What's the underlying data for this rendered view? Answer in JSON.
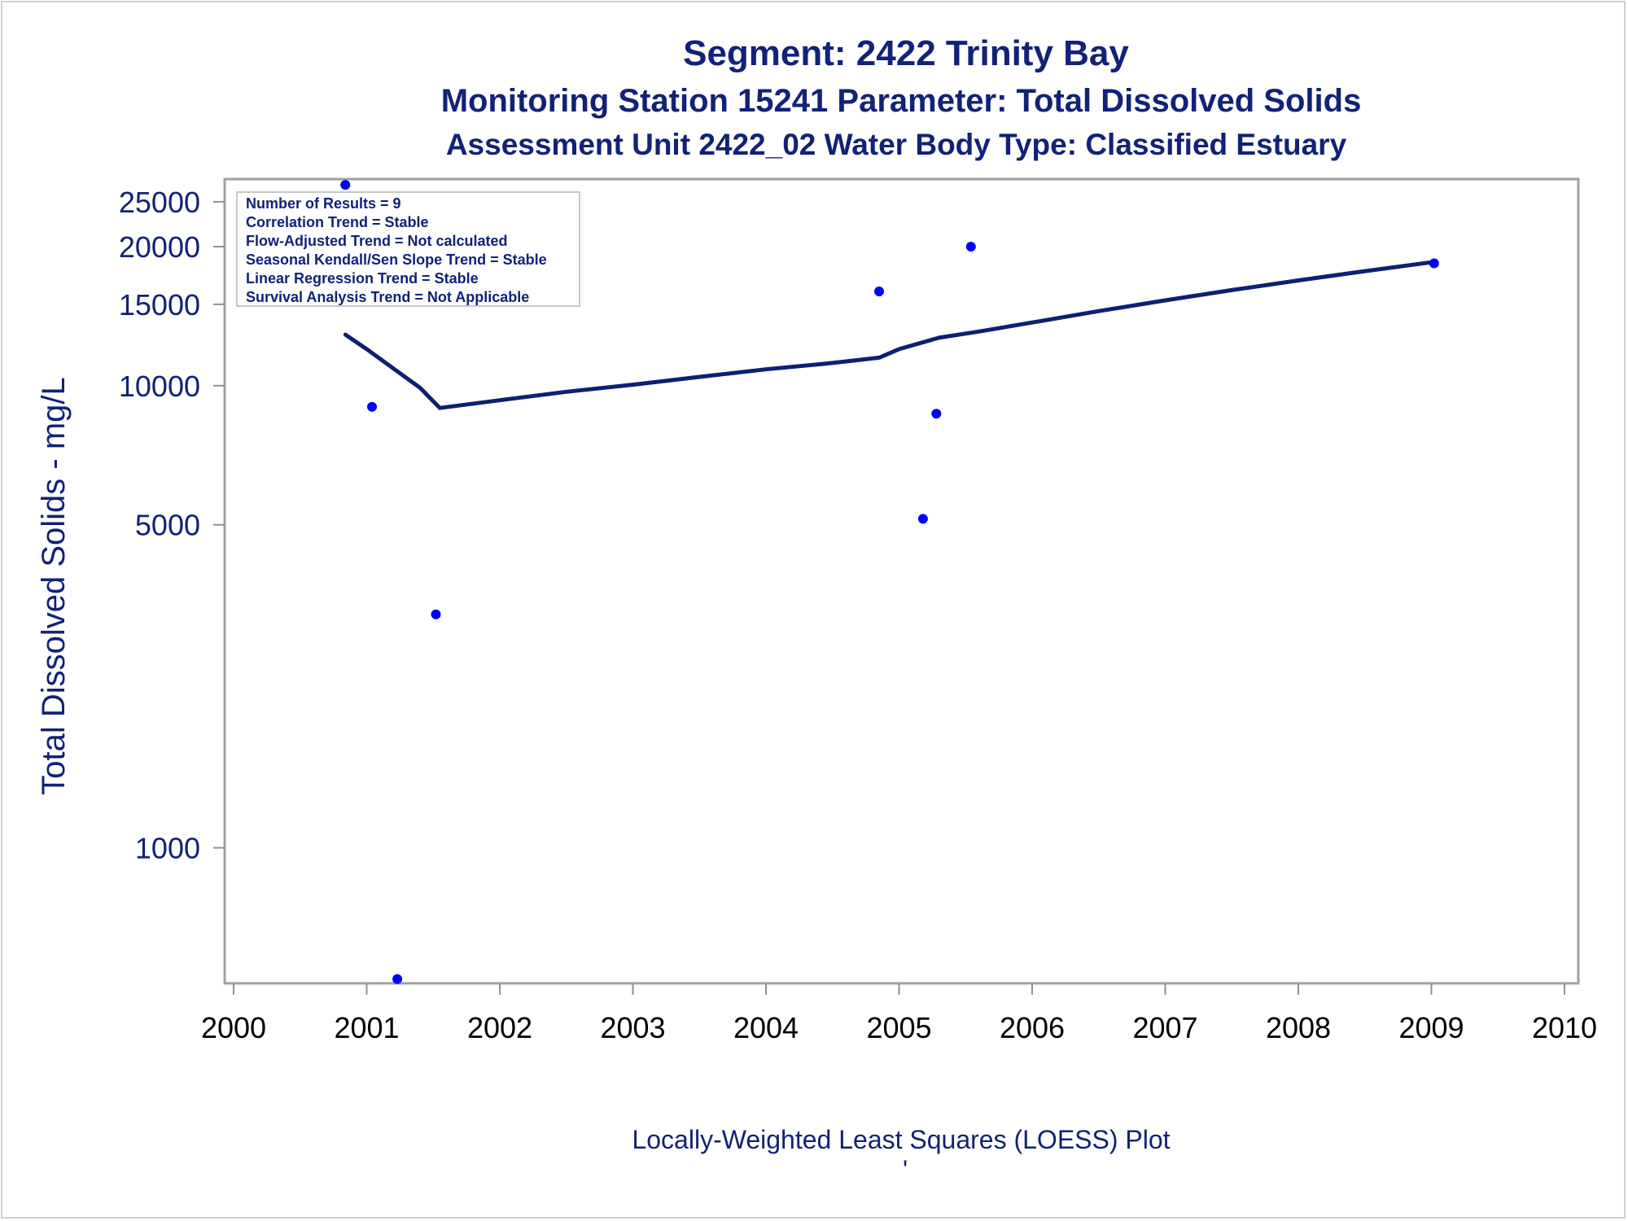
{
  "chart_data": {
    "type": "scatter",
    "title": "Segment: 2422  Trinity Bay",
    "subtitle": "Monitoring Station 15241 Parameter: Total Dissolved Solids",
    "subtitle2": "Assessment Unit 2422_02   Water Body Type: Classified Estuary",
    "xlabel": "",
    "ylabel": "Total Dissolved Solids - mg/L",
    "footnote": "Locally-Weighted Least Squares (LOESS) Plot",
    "footnote_mark": "'",
    "xlim": [
      2000,
      2010
    ],
    "ylim": [
      509,
      28000
    ],
    "yscale": "log",
    "x_ticks": [
      "2000",
      "2001",
      "2002",
      "2003",
      "2004",
      "2005",
      "2006",
      "2007",
      "2008",
      "2009",
      "2010"
    ],
    "y_ticks": [
      1000,
      5000,
      10000,
      15000,
      20000,
      25000
    ],
    "y_tick_labels": [
      "1000",
      "5000",
      "10000",
      "15000",
      "20000",
      "25000"
    ],
    "grid": false,
    "inset_legend": {
      "placement": "top-left",
      "lines": [
        "Number of Results = 9",
        "Correlation Trend = Stable",
        "Flow-Adjusted Trend = Not calculated",
        "Seasonal Kendall/Sen Slope Trend = Stable",
        "Linear Regression Trend = Stable",
        "Survival Analysis Trend = Not Applicable"
      ]
    },
    "series": [
      {
        "kind": "points",
        "color": "#0000ff",
        "points": [
          {
            "x": 2000.84,
            "y": 27200
          },
          {
            "x": 2001.04,
            "y": 9000
          },
          {
            "x": 2001.23,
            "y": 520
          },
          {
            "x": 2001.52,
            "y": 3200
          },
          {
            "x": 2004.85,
            "y": 16000
          },
          {
            "x": 2005.18,
            "y": 5150
          },
          {
            "x": 2005.28,
            "y": 8700
          },
          {
            "x": 2005.54,
            "y": 20000
          },
          {
            "x": 2009.02,
            "y": 18400
          }
        ]
      },
      {
        "kind": "loess",
        "color": "#0d2070",
        "points": [
          {
            "x": 2000.84,
            "y": 12900
          },
          {
            "x": 2001.0,
            "y": 12000
          },
          {
            "x": 2001.2,
            "y": 10900
          },
          {
            "x": 2001.4,
            "y": 9900
          },
          {
            "x": 2001.55,
            "y": 8950
          },
          {
            "x": 2002.0,
            "y": 9300
          },
          {
            "x": 2002.5,
            "y": 9700
          },
          {
            "x": 2003.0,
            "y": 10050
          },
          {
            "x": 2003.5,
            "y": 10450
          },
          {
            "x": 2004.0,
            "y": 10850
          },
          {
            "x": 2004.5,
            "y": 11200
          },
          {
            "x": 2004.85,
            "y": 11500
          },
          {
            "x": 2005.0,
            "y": 12000
          },
          {
            "x": 2005.3,
            "y": 12700
          },
          {
            "x": 2005.6,
            "y": 13100
          },
          {
            "x": 2006.0,
            "y": 13700
          },
          {
            "x": 2006.5,
            "y": 14500
          },
          {
            "x": 2007.0,
            "y": 15300
          },
          {
            "x": 2007.5,
            "y": 16100
          },
          {
            "x": 2008.0,
            "y": 16900
          },
          {
            "x": 2008.5,
            "y": 17700
          },
          {
            "x": 2009.0,
            "y": 18500
          }
        ]
      }
    ]
  }
}
